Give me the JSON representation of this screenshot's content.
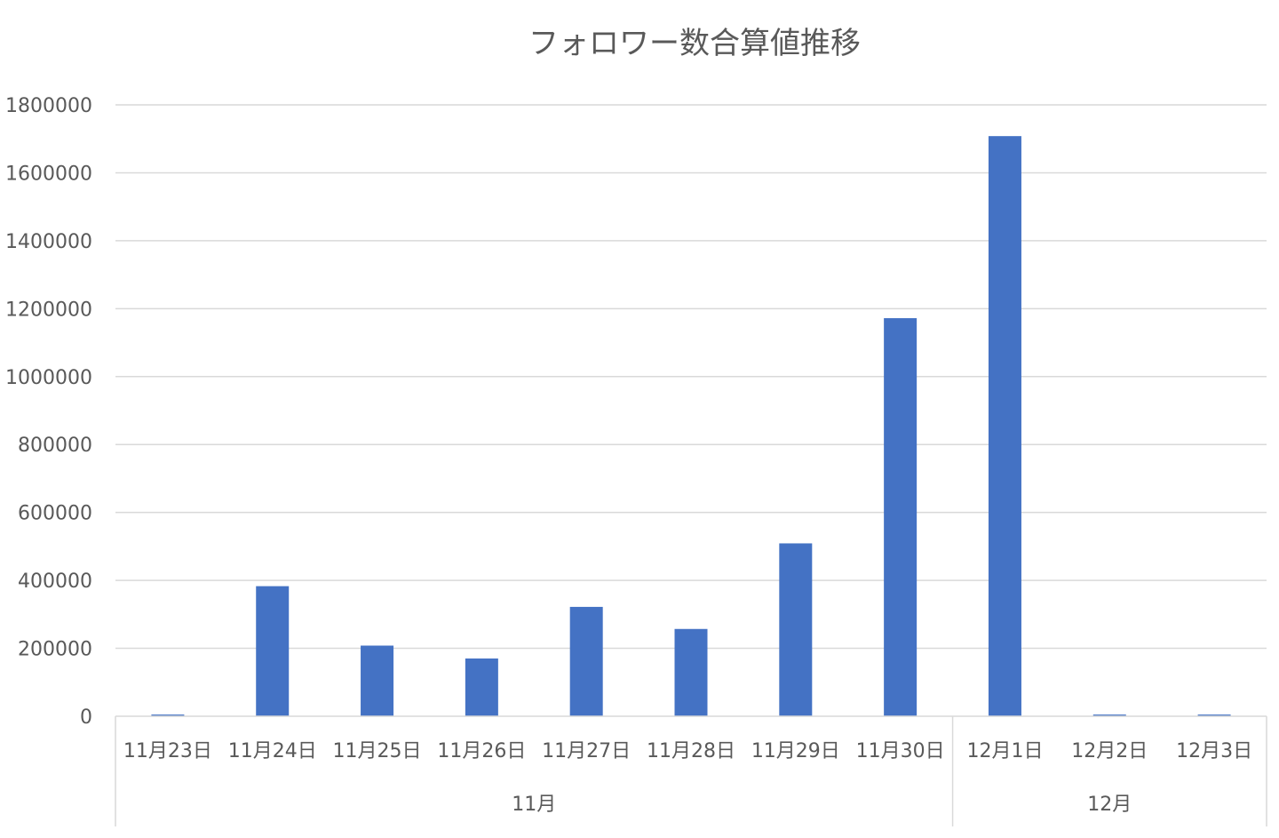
{
  "chart_data": {
    "type": "bar",
    "title": "フォロワー数合算値推移",
    "xlabel": "",
    "ylabel": "",
    "ylim": [
      0,
      1800000
    ],
    "yticks": [
      0,
      200000,
      400000,
      600000,
      800000,
      1000000,
      1200000,
      1400000,
      1600000,
      1800000
    ],
    "categories": [
      "11月23日",
      "11月24日",
      "11月25日",
      "11月26日",
      "11月27日",
      "11月28日",
      "11月29日",
      "11月30日",
      "12月1日",
      "12月2日",
      "12月3日"
    ],
    "groups": [
      {
        "label": "11月",
        "count": 8
      },
      {
        "label": "12月",
        "count": 3
      }
    ],
    "series": [
      {
        "values": [
          5000,
          383000,
          208000,
          170000,
          322000,
          257000,
          509000,
          1172000,
          1708000,
          5000,
          5000
        ]
      }
    ],
    "grid": true,
    "legend": "none",
    "colors": {
      "bar": "#4472c4",
      "grid": "#d9d9d9",
      "text": "#595959"
    }
  }
}
